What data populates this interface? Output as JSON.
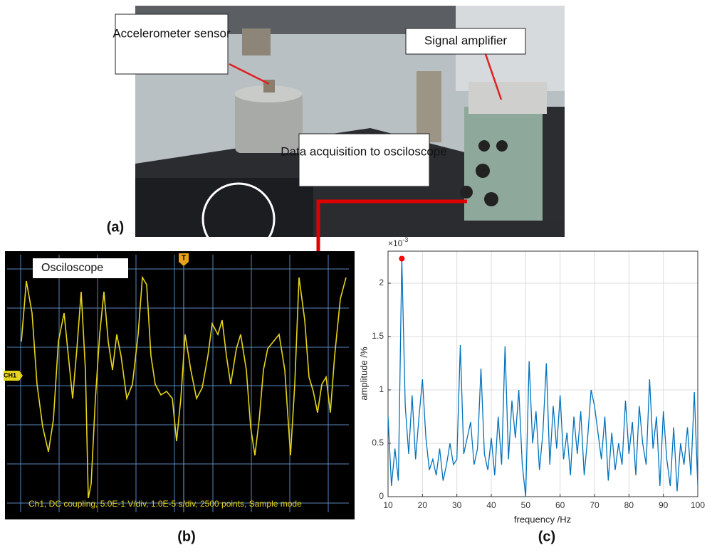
{
  "photo": {
    "panel_label": "(a)",
    "callouts": [
      "Accelerometer sensor",
      "Signal amplifier",
      "Data acquisition to osciloscope"
    ]
  },
  "oscilloscope": {
    "panel_label": "(b)",
    "title": "Osciloscope",
    "channel_marker": "CH1",
    "trigger_marker": "T",
    "status": "Ch1, DC coupling, 5.0E-1 V/div, 1.0E-5 s/div, 2500 points, Sample mode"
  },
  "chart_data": {
    "type": "line",
    "panel_label": "(c)",
    "x_label": "frequency /Hz",
    "y_label": "amplitude /%",
    "y_scale": {
      "base": "×10",
      "exponent": "-3"
    },
    "xlim": [
      10,
      100
    ],
    "ylim": [
      0,
      2.3
    ],
    "xticks": [
      10,
      20,
      30,
      40,
      50,
      60,
      70,
      80,
      90,
      100
    ],
    "yticks": [
      0,
      0.5,
      1,
      1.5,
      2
    ],
    "grid": true,
    "x": [
      10,
      11,
      12,
      13,
      14,
      15,
      16,
      17,
      18,
      19,
      20,
      21,
      22,
      23,
      24,
      25,
      26,
      27,
      28,
      29,
      30,
      31,
      32,
      33,
      34,
      35,
      36,
      37,
      38,
      39,
      40,
      41,
      42,
      43,
      44,
      45,
      46,
      47,
      48,
      49,
      50,
      51,
      52,
      53,
      54,
      55,
      56,
      57,
      58,
      59,
      60,
      61,
      62,
      63,
      64,
      65,
      66,
      67,
      68,
      69,
      70,
      71,
      72,
      73,
      74,
      75,
      76,
      77,
      78,
      79,
      80,
      81,
      82,
      83,
      84,
      85,
      86,
      87,
      88,
      89,
      90,
      91,
      92,
      93,
      94,
      95,
      96,
      97,
      98,
      99,
      100
    ],
    "series": [
      {
        "color": "#0072bd",
        "values": [
          0.75,
          0.1,
          0.45,
          0.15,
          2.23,
          0.85,
          0.4,
          0.95,
          0.35,
          0.75,
          1.1,
          0.55,
          0.25,
          0.35,
          0.2,
          0.45,
          0.15,
          0.3,
          0.5,
          0.3,
          0.35,
          1.42,
          0.4,
          0.55,
          0.7,
          0.3,
          0.45,
          1.2,
          0.4,
          0.25,
          0.55,
          0.2,
          0.75,
          0.3,
          1.41,
          0.35,
          0.9,
          0.55,
          1.0,
          0.3,
          0,
          1.27,
          0.5,
          0.8,
          0.25,
          0.6,
          1.25,
          0.3,
          0.85,
          0.45,
          0.95,
          0.35,
          0.6,
          0.2,
          0.75,
          0.4,
          0.8,
          0.2,
          0.55,
          1.0,
          0.85,
          0.6,
          0.35,
          0.75,
          0.15,
          0.6,
          0.25,
          0.5,
          0.3,
          0.9,
          0.4,
          0.7,
          0.2,
          0.85,
          0.5,
          0.3,
          1.1,
          0.45,
          0.75,
          0.1,
          0.8,
          0.35,
          0.1,
          0.65,
          0.05,
          0.5,
          0.3,
          0.65,
          0.2,
          0.98,
          0.1
        ]
      }
    ],
    "peak": {
      "x": 14,
      "y": 2.23,
      "color": "#ff0000"
    }
  }
}
